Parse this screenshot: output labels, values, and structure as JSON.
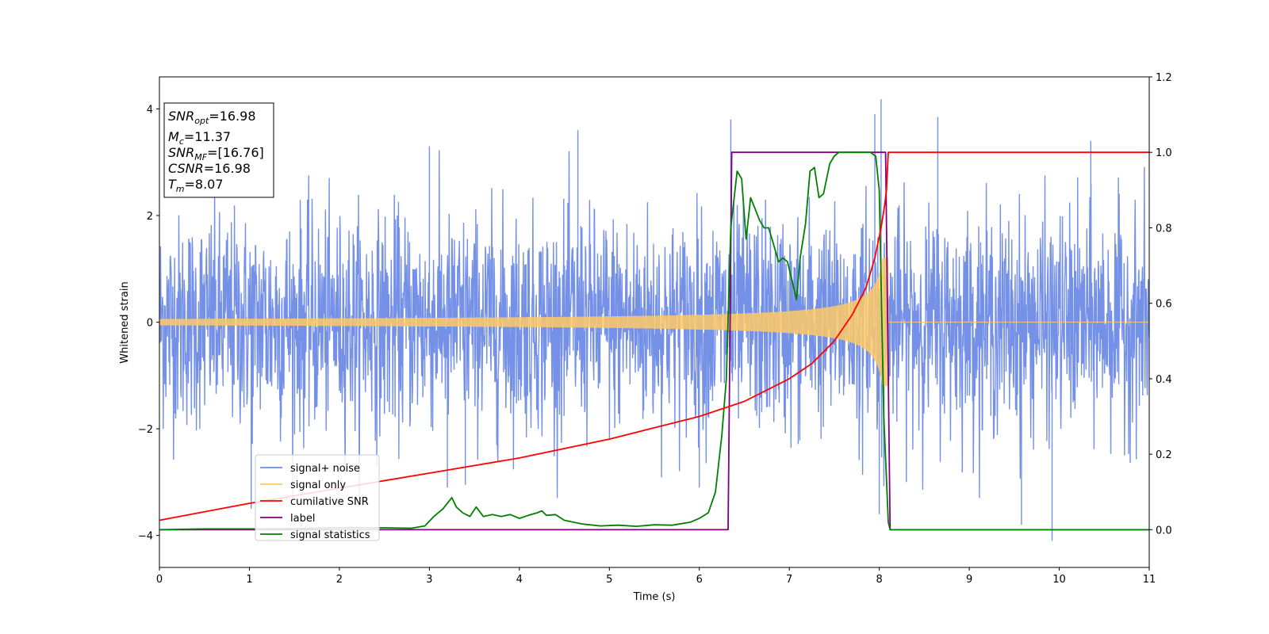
{
  "chart_data": {
    "type": "line",
    "xlabel": "Time (s)",
    "ylabel": "Whitened strain",
    "xlim": [
      0,
      11
    ],
    "ylim_left": [
      -4.6,
      4.6
    ],
    "ylim_right": [
      -0.1,
      1.2
    ],
    "x_ticks": [
      "0",
      "1",
      "2",
      "3",
      "4",
      "5",
      "6",
      "7",
      "8",
      "9",
      "10",
      "11"
    ],
    "y_left_ticks": [
      "−4",
      "−2",
      "0",
      "2",
      "4"
    ],
    "y_right_ticks": [
      "0.0",
      "0.2",
      "0.4",
      "0.6",
      "0.8",
      "1.0",
      "1.2"
    ],
    "legend_placement": "lower-left",
    "series": [
      {
        "name": "signal+ noise",
        "axis": "left",
        "color": "#6e8be6",
        "description_values": {
          "typical_amplitude": [
            -2.2,
            2.2
          ],
          "peak_max": 4.18,
          "peak_min": -4.1
        },
        "peaks": [
          [
            3.0,
            3.3
          ],
          [
            4.65,
            3.6
          ],
          [
            6.35,
            3.8
          ],
          [
            7.95,
            3.9
          ],
          [
            8.02,
            4.18
          ],
          [
            8.65,
            3.85
          ],
          [
            9.58,
            -3.8
          ],
          [
            9.92,
            -4.1
          ],
          [
            10.35,
            3.4
          ],
          [
            1.02,
            -3.5
          ],
          [
            3.2,
            -3.1
          ],
          [
            3.4,
            -3.05
          ],
          [
            6.0,
            -3.1
          ],
          [
            8.0,
            -3.6
          ]
        ]
      },
      {
        "name": "signal only",
        "axis": "left",
        "color": "#ffc966",
        "chirp": {
          "t_start": 0,
          "t_merge": 8.1,
          "amp_start": 0.06,
          "amp_peak": 1.2,
          "f_start": 28,
          "f_end": 120
        }
      },
      {
        "name": "cumilative SNR",
        "axis": "right",
        "color": "#ff0000",
        "x": [
          0,
          1,
          2,
          3,
          4,
          5,
          5.5,
          6,
          6.5,
          7,
          7.25,
          7.5,
          7.7,
          7.85,
          7.95,
          8.02,
          8.06,
          8.08,
          8.1,
          11
        ],
        "y": [
          0.025,
          0.07,
          0.11,
          0.15,
          0.19,
          0.24,
          0.27,
          0.3,
          0.34,
          0.4,
          0.44,
          0.5,
          0.57,
          0.64,
          0.72,
          0.8,
          0.86,
          0.9,
          1.0,
          1.0
        ]
      },
      {
        "name": "label",
        "axis": "right",
        "color": "#800080",
        "x": [
          0,
          6.32,
          6.36,
          8.07,
          8.12,
          11
        ],
        "y": [
          0.0,
          0.0,
          1.0,
          1.0,
          0.0,
          0.0
        ]
      },
      {
        "name": "signal statistics",
        "axis": "right",
        "color": "#008000",
        "x": [
          0,
          0.5,
          1,
          1.5,
          2,
          2.5,
          2.8,
          2.95,
          3.05,
          3.15,
          3.25,
          3.3,
          3.37,
          3.45,
          3.52,
          3.6,
          3.7,
          3.8,
          3.9,
          4.0,
          4.1,
          4.2,
          4.25,
          4.3,
          4.4,
          4.5,
          4.7,
          4.9,
          5.1,
          5.3,
          5.5,
          5.7,
          5.9,
          6.0,
          6.1,
          6.18,
          6.25,
          6.3,
          6.35,
          6.42,
          6.47,
          6.52,
          6.57,
          6.62,
          6.67,
          6.72,
          6.77,
          6.82,
          6.88,
          6.93,
          6.98,
          7.03,
          7.08,
          7.12,
          7.18,
          7.23,
          7.28,
          7.33,
          7.38,
          7.45,
          7.5,
          7.55,
          7.62,
          7.7,
          7.8,
          7.9,
          7.96,
          8.0,
          8.05,
          8.1,
          8.12,
          11
        ],
        "y": [
          0.0,
          0.002,
          0.002,
          0.003,
          0.005,
          0.005,
          0.004,
          0.01,
          0.035,
          0.055,
          0.085,
          0.06,
          0.045,
          0.035,
          0.06,
          0.035,
          0.04,
          0.035,
          0.04,
          0.03,
          0.038,
          0.045,
          0.05,
          0.038,
          0.04,
          0.025,
          0.015,
          0.01,
          0.012,
          0.009,
          0.013,
          0.012,
          0.02,
          0.03,
          0.045,
          0.1,
          0.25,
          0.4,
          0.8,
          0.95,
          0.93,
          0.77,
          0.88,
          0.85,
          0.82,
          0.8,
          0.8,
          0.76,
          0.71,
          0.72,
          0.71,
          0.66,
          0.61,
          0.72,
          0.81,
          0.95,
          0.96,
          0.88,
          0.89,
          0.97,
          0.99,
          1.0,
          1.0,
          1.0,
          1.0,
          1.0,
          0.99,
          0.9,
          0.3,
          0.02,
          0.0,
          0.0
        ]
      }
    ]
  },
  "info_box": {
    "snr_opt_value": "=16.98",
    "mc_value": "=11.37",
    "snr_mf_value": "=[16.76]",
    "csnr_value": "=16.98",
    "tm_value": "=8.07"
  }
}
